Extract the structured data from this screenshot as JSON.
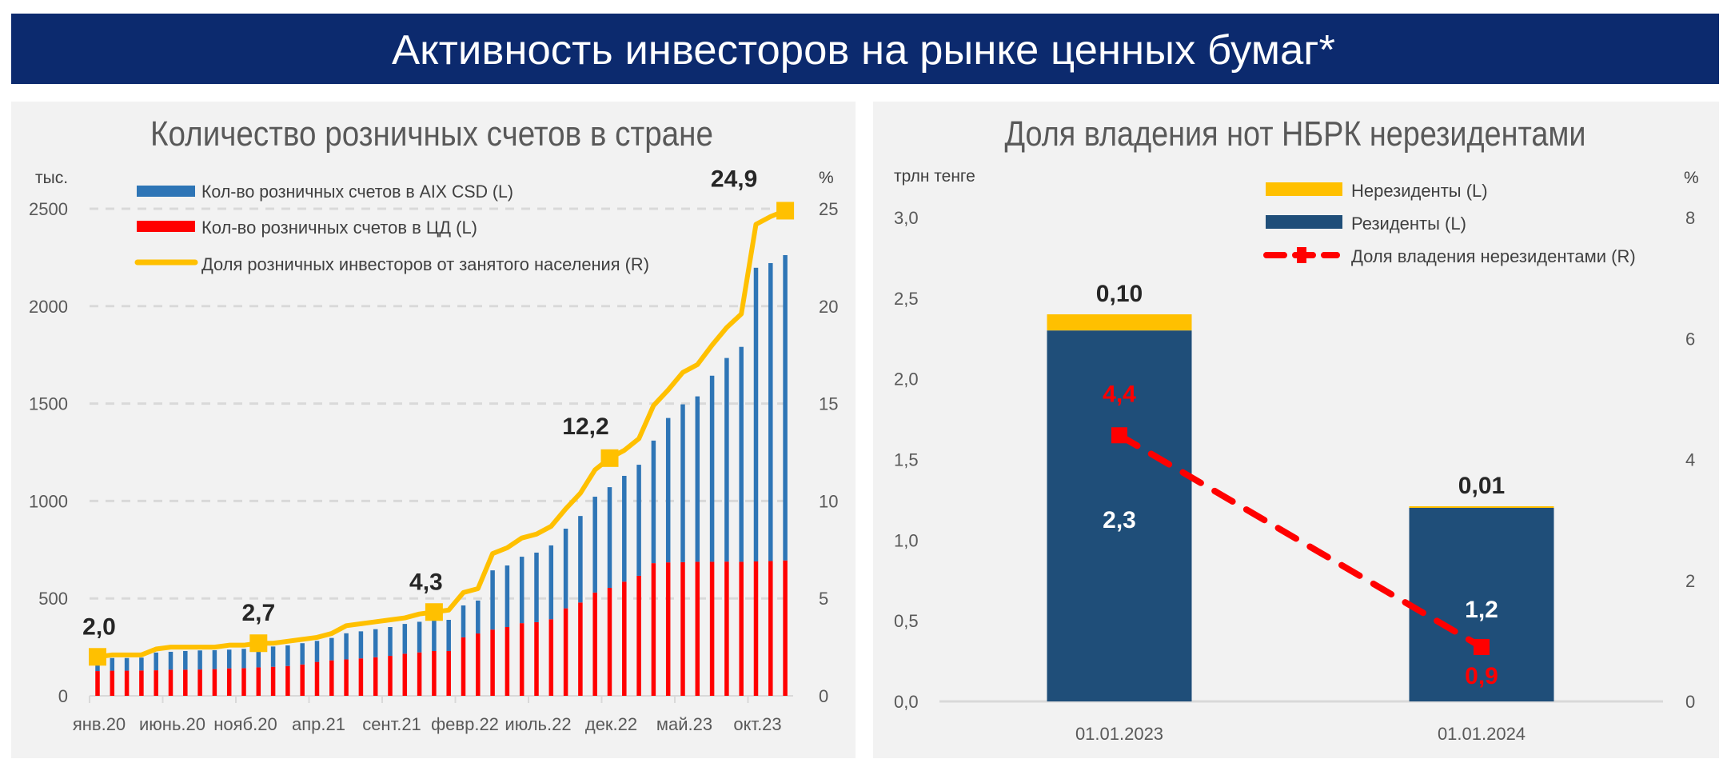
{
  "header": {
    "title": "Активность инвесторов на рынке ценных бумаг*"
  },
  "colors": {
    "header_bg": "#0c2a6e",
    "panel_bg": "#f2f2f2",
    "aix": "#2e75b6",
    "cd": "#ff0000",
    "share_line": "#ffc000",
    "nonresidents": "#ffc000",
    "residents": "#1f4e79",
    "nonres_share": "#ff0000"
  },
  "chart_data": [
    {
      "type": "bar",
      "stacked": true,
      "title": "Количество розничных счетов в стране",
      "ylabel_left": "тыс.",
      "ylabel_right": "%",
      "ylim_left": [
        0,
        2500
      ],
      "ylim_right": [
        0,
        25
      ],
      "yticks_left": [
        "0",
        "500",
        "1000",
        "1500",
        "2000",
        "2500"
      ],
      "yticks_right": [
        "0",
        "5",
        "10",
        "15",
        "20",
        "25"
      ],
      "x_tick_labels": [
        "янв.20",
        "июнь.20",
        "нояб.20",
        "апр.21",
        "сент.21",
        "февр.22",
        "июль.22",
        "дек.22",
        "май.23",
        "окт.23"
      ],
      "grid": true,
      "legend_position": "top-left",
      "series": [
        {
          "name": "Кол-во розничных счетов в AIX CSD (L)",
          "type": "bar",
          "axis": "left",
          "values": [
            43,
            65,
            65,
            66,
            91,
            92,
            96,
            98,
            97,
            96,
            99,
            100,
            104,
            106,
            109,
            108,
            115,
            134,
            139,
            144,
            148,
            153,
            157,
            158,
            160,
            164,
            169,
            304,
            316,
            341,
            357,
            379,
            409,
            444,
            492,
            517,
            543,
            570,
            629,
            741,
            810,
            849,
            955,
            1045,
            1103,
            1507,
            1529,
            1567
          ]
        },
        {
          "name": "Кол-во розничных счетов в ЦД (L)",
          "type": "bar",
          "axis": "left",
          "values": [
            127,
            129,
            129,
            130,
            131,
            134,
            134,
            135,
            137,
            141,
            142,
            146,
            149,
            153,
            161,
            174,
            182,
            187,
            192,
            198,
            205,
            216,
            223,
            230,
            230,
            300,
            320,
            340,
            353,
            373,
            378,
            393,
            449,
            479,
            530,
            554,
            586,
            616,
            681,
            685,
            686,
            688,
            688,
            689,
            688,
            690,
            692,
            695
          ]
        },
        {
          "name": "Доля розничных инвесторов от занятого населения (R)",
          "type": "line",
          "axis": "right",
          "values": [
            2.0,
            2.1,
            2.1,
            2.1,
            2.4,
            2.5,
            2.5,
            2.5,
            2.5,
            2.6,
            2.6,
            2.7,
            2.7,
            2.8,
            2.9,
            3.0,
            3.2,
            3.6,
            3.7,
            3.8,
            3.9,
            4.0,
            4.2,
            4.3,
            4.4,
            5.3,
            5.5,
            7.3,
            7.6,
            8.1,
            8.3,
            8.7,
            9.6,
            10.4,
            11.6,
            12.2,
            12.6,
            13.2,
            14.9,
            15.7,
            16.6,
            17.0,
            18.0,
            18.9,
            19.6,
            24.2,
            24.6,
            24.9
          ]
        }
      ],
      "annotations": [
        {
          "index": 0,
          "label": "2,0"
        },
        {
          "index": 11,
          "label": "2,7"
        },
        {
          "index": 23,
          "label": "4,3"
        },
        {
          "index": 35,
          "label": "12,2"
        },
        {
          "index": 47,
          "label": "24,9"
        }
      ]
    },
    {
      "type": "bar",
      "stacked": true,
      "title": "Доля владения нот НБРК нерезидентами",
      "ylabel_left": "трлн тенге",
      "ylabel_right": "%",
      "ylim_left": [
        0,
        3.0
      ],
      "ylim_right": [
        0,
        8
      ],
      "yticks_left": [
        "0,0",
        "0,5",
        "1,0",
        "1,5",
        "2,0",
        "2,5",
        "3,0"
      ],
      "yticks_right": [
        "0",
        "2",
        "4",
        "6",
        "8"
      ],
      "categories": [
        "01.01.2023",
        "01.01.2024"
      ],
      "legend_position": "top-right",
      "series": [
        {
          "name": "Нерезиденты (L)",
          "type": "bar",
          "axis": "left",
          "values": [
            0.1,
            0.01
          ],
          "labels": [
            "0,10",
            "0,01"
          ]
        },
        {
          "name": "Резиденты (L)",
          "type": "bar",
          "axis": "left",
          "values": [
            2.3,
            1.2
          ],
          "labels": [
            "2,3",
            "1,2"
          ]
        },
        {
          "name": "Доля владения нерезидентами (R)",
          "type": "line",
          "axis": "right",
          "values": [
            4.4,
            0.9
          ],
          "labels": [
            "4,4",
            "0,9"
          ]
        }
      ]
    }
  ]
}
